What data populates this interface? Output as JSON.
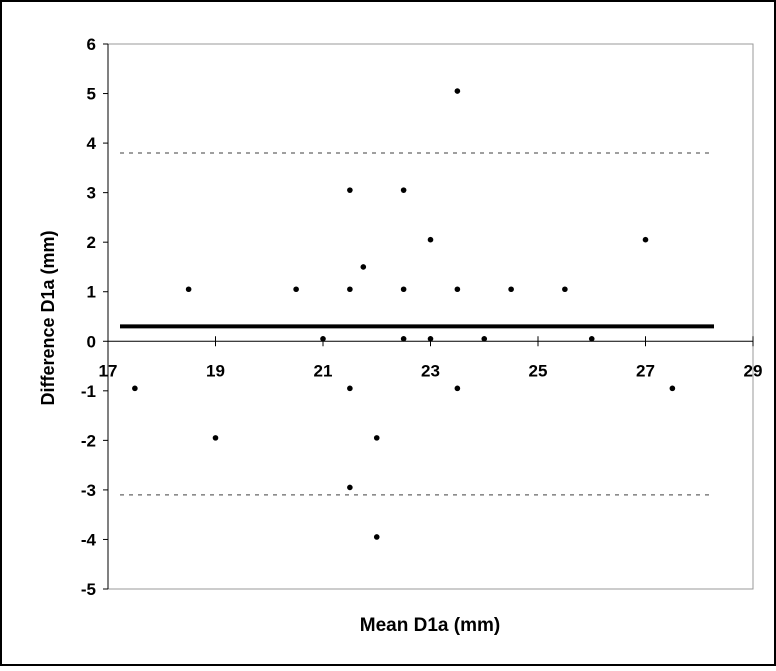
{
  "chart_data": {
    "type": "scatter",
    "title": "",
    "xlabel": "Mean D1a (mm)",
    "ylabel": "Difference D1a (mm)",
    "xlim": [
      17,
      29
    ],
    "ylim": [
      -5,
      6
    ],
    "xticks": [
      17,
      19,
      21,
      23,
      25,
      27,
      29
    ],
    "yticks": [
      -5,
      -4,
      -3,
      -2,
      -1,
      0,
      1,
      2,
      3,
      4,
      5,
      6
    ],
    "grid": false,
    "legend": "none",
    "mean_line": 0.3,
    "limits_of_agreement": [
      3.8,
      -3.1
    ],
    "colors": {
      "points": "#000000",
      "mean_line": "#000000",
      "limit_lines": "#666666",
      "plot_border": "#999999"
    },
    "series": [
      {
        "points": [
          [
            17.5,
            -0.95
          ],
          [
            18.5,
            1.05
          ],
          [
            19,
            -1.95
          ],
          [
            20.5,
            1.05
          ],
          [
            21,
            0.05
          ],
          [
            21.5,
            3.05
          ],
          [
            21.5,
            1.05
          ],
          [
            21.5,
            -0.95
          ],
          [
            21.5,
            -2.95
          ],
          [
            21.75,
            1.5
          ],
          [
            22,
            -1.95
          ],
          [
            22,
            -3.95
          ],
          [
            22.5,
            3.05
          ],
          [
            22.5,
            1.05
          ],
          [
            22.5,
            0.05
          ],
          [
            23,
            2.05
          ],
          [
            23,
            0.05
          ],
          [
            23.5,
            5.05
          ],
          [
            23.5,
            1.05
          ],
          [
            23.5,
            -0.95
          ],
          [
            24,
            0.05
          ],
          [
            24.5,
            1.05
          ],
          [
            25.5,
            1.05
          ],
          [
            26,
            0.05
          ],
          [
            27,
            2.05
          ],
          [
            27.5,
            -0.95
          ]
        ]
      }
    ]
  }
}
